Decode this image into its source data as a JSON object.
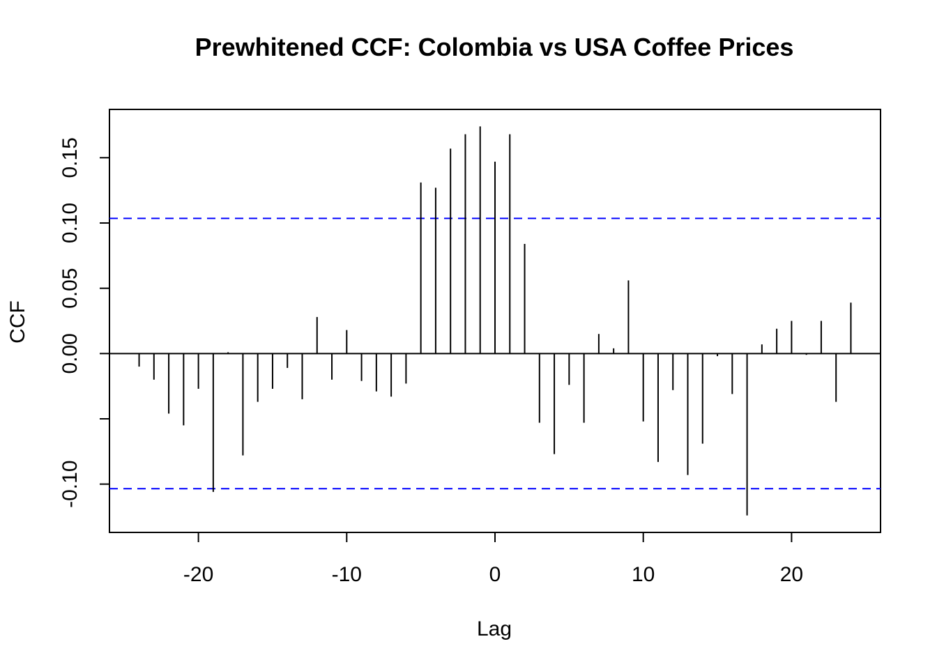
{
  "chart_data": {
    "type": "bar",
    "title": "Prewhitened CCF: Colombia vs USA Coffee Prices",
    "xlabel": "Lag",
    "ylabel": "CCF",
    "xlim": [
      -26,
      26
    ],
    "ylim": [
      -0.137,
      0.187
    ],
    "x_ticks": [
      -20,
      -10,
      0,
      10,
      20
    ],
    "y_ticks": [
      -0.1,
      -0.05,
      0.0,
      0.05,
      0.1,
      0.15
    ],
    "y_tick_labels": [
      "-0.10",
      "",
      "0.00",
      "0.05",
      "0.10",
      "0.15"
    ],
    "x_tick_labels": [
      "-20",
      "-10",
      "0",
      "10",
      "20"
    ],
    "confidence_bound": 0.1035,
    "confidence_color": "#0000ff",
    "bar_color": "#000000",
    "lags": [
      -24,
      -23,
      -22,
      -21,
      -20,
      -19,
      -18,
      -17,
      -16,
      -15,
      -14,
      -13,
      -12,
      -11,
      -10,
      -9,
      -8,
      -7,
      -6,
      -5,
      -4,
      -3,
      -2,
      -1,
      0,
      1,
      2,
      3,
      4,
      5,
      6,
      7,
      8,
      9,
      10,
      11,
      12,
      13,
      14,
      15,
      16,
      17,
      18,
      19,
      20,
      21,
      22,
      23,
      24
    ],
    "values": [
      -0.01,
      -0.02,
      -0.046,
      -0.055,
      -0.027,
      -0.106,
      0.001,
      -0.078,
      -0.037,
      -0.027,
      -0.011,
      -0.035,
      0.028,
      -0.02,
      0.018,
      -0.021,
      -0.029,
      -0.033,
      -0.023,
      0.131,
      0.127,
      0.157,
      0.168,
      0.174,
      0.147,
      0.168,
      0.084,
      -0.053,
      -0.077,
      -0.024,
      -0.053,
      0.015,
      0.004,
      0.056,
      -0.052,
      -0.083,
      -0.028,
      -0.093,
      -0.069,
      -0.002,
      -0.031,
      -0.124,
      0.007,
      0.019,
      0.025,
      -0.001,
      0.025,
      -0.037,
      0.039
    ]
  }
}
